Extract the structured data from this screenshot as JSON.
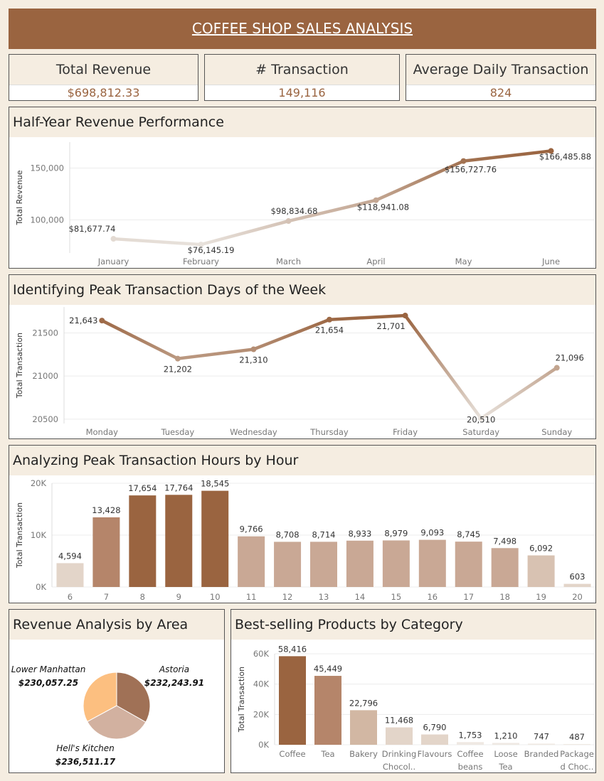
{
  "header": {
    "title": "COFFEE SHOP SALES ANALYSIS"
  },
  "kpis": [
    {
      "label": "Total Revenue",
      "value": "$698,812.33"
    },
    {
      "label": "# Transaction",
      "value": "149,116"
    },
    {
      "label": "Average Daily Transaction",
      "value": "824"
    }
  ],
  "colors": {
    "brand": "#9a6440",
    "background": "#f5ede1",
    "light": "#e3d5c9",
    "mid": "#c9a895"
  },
  "chart_data": [
    {
      "type": "line",
      "title": "Half-Year Revenue Performance",
      "ylabel": "Total Revenue",
      "xlabel": "",
      "categories": [
        "January",
        "February",
        "March",
        "April",
        "May",
        "June"
      ],
      "values": [
        81677.74,
        76145.19,
        98834.68,
        118941.08,
        156727.76,
        166485.88
      ],
      "value_labels": [
        "$81,677.74",
        "$76,145.19",
        "$98,834.68",
        "$118,941.08",
        "$156,727.76",
        "$166,485.88"
      ],
      "y_ticks": [
        "100,000",
        "150,000"
      ],
      "ylim": [
        68000,
        175000
      ],
      "grid": true
    },
    {
      "type": "line",
      "title": "Identifying Peak Transaction Days of the Week",
      "ylabel": "Total Transaction",
      "xlabel": "",
      "categories": [
        "Monday",
        "Tuesday",
        "Wednesday",
        "Thursday",
        "Friday",
        "Saturday",
        "Sunday"
      ],
      "values": [
        21643,
        21202,
        21310,
        21654,
        21701,
        20510,
        21096
      ],
      "value_labels": [
        "21,643",
        "21,202",
        "21,310",
        "21,654",
        "21,701",
        "20,510",
        "21,096"
      ],
      "y_ticks": [
        "20500",
        "21000",
        "21500"
      ],
      "ylim": [
        20450,
        21800
      ],
      "grid": true
    },
    {
      "type": "bar",
      "title": "Analyzing Peak Transaction Hours by Hour",
      "ylabel": "Total Transaction",
      "xlabel": "",
      "categories": [
        "6",
        "7",
        "8",
        "9",
        "10",
        "11",
        "12",
        "13",
        "14",
        "15",
        "16",
        "17",
        "18",
        "19",
        "20"
      ],
      "values": [
        4594,
        13428,
        17654,
        17764,
        18545,
        9766,
        8708,
        8714,
        8933,
        8979,
        9093,
        8745,
        7498,
        6092,
        603
      ],
      "value_labels": [
        "4,594",
        "13,428",
        "17,654",
        "17,764",
        "18,545",
        "9,766",
        "8,708",
        "8,714",
        "8,933",
        "8,979",
        "9,093",
        "8,745",
        "7,498",
        "6,092",
        "603"
      ],
      "y_ticks": [
        "0K",
        "10K",
        "20K"
      ],
      "ylim": [
        0,
        20000
      ],
      "grid": true
    },
    {
      "type": "pie",
      "title": "Revenue Analysis by Area",
      "series": [
        {
          "name": "Astoria",
          "value": 232243.91,
          "label": "$232,243.91"
        },
        {
          "name": "Hell's Kitchen",
          "value": 236511.17,
          "label": "$236,511.17"
        },
        {
          "name": "Lower Manhattan",
          "value": 230057.25,
          "label": "$230,057.25"
        }
      ]
    },
    {
      "type": "bar",
      "title": "Best-selling Products by Category",
      "ylabel": "Total Transaction",
      "xlabel": "",
      "categories": [
        [
          "Coffee"
        ],
        [
          "Tea"
        ],
        [
          "Bakery"
        ],
        [
          "Drinking",
          "Chocol.."
        ],
        [
          "Flavours"
        ],
        [
          "Coffee",
          "beans"
        ],
        [
          "Loose",
          "Tea"
        ],
        [
          "Branded"
        ],
        [
          "Package",
          "d Choc.."
        ]
      ],
      "values": [
        58416,
        45449,
        22796,
        11468,
        6790,
        1753,
        1210,
        747,
        487
      ],
      "value_labels": [
        "58,416",
        "45,449",
        "22,796",
        "11,468",
        "6,790",
        "1,753",
        "1,210",
        "747",
        "487"
      ],
      "y_ticks": [
        "0K",
        "20K",
        "40K",
        "60K"
      ],
      "ylim": [
        0,
        60000
      ],
      "grid": true
    }
  ]
}
